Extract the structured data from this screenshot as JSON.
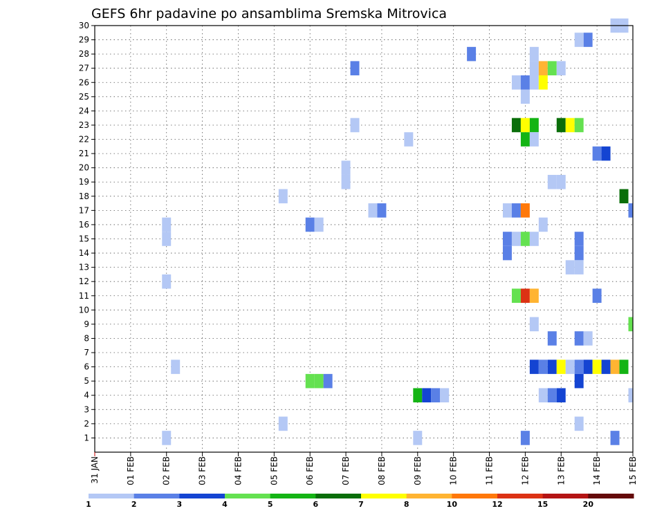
{
  "chart_data": {
    "type": "heatmap",
    "title": "GEFS 6hr padavine po ansamblima Sremska Mitrovica",
    "xlabel": "",
    "ylabel": "",
    "x_tick_labels": [
      "31 JAN",
      "01 FEB",
      "02 FEB",
      "03 FEB",
      "04 FEB",
      "05 FEB",
      "06 FEB",
      "07 FEB",
      "08 FEB",
      "09 FEB",
      "10 FEB",
      "11 FEB",
      "12 FEB",
      "13 FEB",
      "14 FEB",
      "15 FEB"
    ],
    "xlim": [
      0,
      15
    ],
    "ylim": [
      0,
      30
    ],
    "y_ticks": [
      1,
      2,
      3,
      4,
      5,
      6,
      7,
      8,
      9,
      10,
      11,
      12,
      13,
      14,
      15,
      16,
      17,
      18,
      19,
      20,
      21,
      22,
      23,
      24,
      25,
      26,
      27,
      28,
      29,
      30
    ],
    "grid": true,
    "legend": {
      "placement": "bottom",
      "labels": [
        "1",
        "2",
        "3",
        "4",
        "5",
        "6",
        "7",
        "8",
        "10",
        "12",
        "15",
        "20"
      ],
      "colors": [
        "#b4c8f5",
        "#5a80e6",
        "#1444d2",
        "#64e150",
        "#14b414",
        "#0a6e0a",
        "#ffff00",
        "#ffb432",
        "#ff780a",
        "#dc3214",
        "#b41414",
        "#640a0a"
      ]
    },
    "cells": [
      {
        "day": 14.75,
        "member": 30,
        "bin": 0
      },
      {
        "day": 14.5,
        "member": 30,
        "bin": 0
      },
      {
        "day": 13.75,
        "member": 29,
        "bin": 1
      },
      {
        "day": 13.5,
        "member": 29,
        "bin": 0
      },
      {
        "day": 10.5,
        "member": 28,
        "bin": 1
      },
      {
        "day": 12.25,
        "member": 28,
        "bin": 0
      },
      {
        "day": 7.25,
        "member": 27,
        "bin": 1
      },
      {
        "day": 12.25,
        "member": 27,
        "bin": 0
      },
      {
        "day": 12.5,
        "member": 27,
        "bin": 7
      },
      {
        "day": 12.75,
        "member": 27,
        "bin": 3
      },
      {
        "day": 13.0,
        "member": 27,
        "bin": 0
      },
      {
        "day": 11.75,
        "member": 26,
        "bin": 0
      },
      {
        "day": 12.0,
        "member": 26,
        "bin": 1
      },
      {
        "day": 12.25,
        "member": 26,
        "bin": 0
      },
      {
        "day": 12.5,
        "member": 26,
        "bin": 6
      },
      {
        "day": 12.0,
        "member": 25,
        "bin": 0
      },
      {
        "day": 11.75,
        "member": 23,
        "bin": 5
      },
      {
        "day": 12.0,
        "member": 23,
        "bin": 6
      },
      {
        "day": 12.25,
        "member": 23,
        "bin": 4
      },
      {
        "day": 7.25,
        "member": 23,
        "bin": 0
      },
      {
        "day": 13.0,
        "member": 23,
        "bin": 5
      },
      {
        "day": 13.25,
        "member": 23,
        "bin": 6
      },
      {
        "day": 13.5,
        "member": 23,
        "bin": 3
      },
      {
        "day": 8.75,
        "member": 22,
        "bin": 0
      },
      {
        "day": 12.0,
        "member": 22,
        "bin": 4
      },
      {
        "day": 12.25,
        "member": 22,
        "bin": 0
      },
      {
        "day": 14.0,
        "member": 21,
        "bin": 1
      },
      {
        "day": 14.25,
        "member": 21,
        "bin": 2
      },
      {
        "day": 7.0,
        "member": 20,
        "bin": 0
      },
      {
        "day": 7.0,
        "member": 19,
        "bin": 0
      },
      {
        "day": 12.75,
        "member": 19,
        "bin": 0
      },
      {
        "day": 13.0,
        "member": 19,
        "bin": 0
      },
      {
        "day": 5.25,
        "member": 18,
        "bin": 0
      },
      {
        "day": 14.75,
        "member": 18,
        "bin": 5
      },
      {
        "day": 7.75,
        "member": 17,
        "bin": 0
      },
      {
        "day": 8.0,
        "member": 17,
        "bin": 1
      },
      {
        "day": 11.5,
        "member": 17,
        "bin": 0
      },
      {
        "day": 11.75,
        "member": 17,
        "bin": 1
      },
      {
        "day": 12.0,
        "member": 17,
        "bin": 8
      },
      {
        "day": 15.0,
        "member": 17,
        "bin": 1
      },
      {
        "day": 2.0,
        "member": 16,
        "bin": 0
      },
      {
        "day": 6.0,
        "member": 16,
        "bin": 1
      },
      {
        "day": 6.25,
        "member": 16,
        "bin": 0
      },
      {
        "day": 12.5,
        "member": 16,
        "bin": 0
      },
      {
        "day": 2.0,
        "member": 15,
        "bin": 0
      },
      {
        "day": 11.5,
        "member": 15,
        "bin": 1
      },
      {
        "day": 11.75,
        "member": 15,
        "bin": 0
      },
      {
        "day": 12.0,
        "member": 15,
        "bin": 3
      },
      {
        "day": 12.25,
        "member": 15,
        "bin": 0
      },
      {
        "day": 13.5,
        "member": 15,
        "bin": 1
      },
      {
        "day": 11.5,
        "member": 14,
        "bin": 1
      },
      {
        "day": 13.5,
        "member": 14,
        "bin": 1
      },
      {
        "day": 13.25,
        "member": 13,
        "bin": 0
      },
      {
        "day": 13.5,
        "member": 13,
        "bin": 0
      },
      {
        "day": 2.0,
        "member": 12,
        "bin": 0
      },
      {
        "day": 11.75,
        "member": 11,
        "bin": 3
      },
      {
        "day": 12.0,
        "member": 11,
        "bin": 9
      },
      {
        "day": 12.25,
        "member": 11,
        "bin": 7
      },
      {
        "day": 14.0,
        "member": 11,
        "bin": 1
      },
      {
        "day": 12.25,
        "member": 9,
        "bin": 0
      },
      {
        "day": 15.0,
        "member": 9,
        "bin": 3
      },
      {
        "day": 12.75,
        "member": 8,
        "bin": 1
      },
      {
        "day": 13.5,
        "member": 8,
        "bin": 1
      },
      {
        "day": 13.75,
        "member": 8,
        "bin": 0
      },
      {
        "day": 2.25,
        "member": 6,
        "bin": 0
      },
      {
        "day": 12.25,
        "member": 6,
        "bin": 2
      },
      {
        "day": 12.5,
        "member": 6,
        "bin": 1
      },
      {
        "day": 12.75,
        "member": 6,
        "bin": 2
      },
      {
        "day": 13.0,
        "member": 6,
        "bin": 6
      },
      {
        "day": 13.25,
        "member": 6,
        "bin": 0
      },
      {
        "day": 13.5,
        "member": 6,
        "bin": 1
      },
      {
        "day": 13.75,
        "member": 6,
        "bin": 2
      },
      {
        "day": 14.0,
        "member": 6,
        "bin": 6
      },
      {
        "day": 14.25,
        "member": 6,
        "bin": 2
      },
      {
        "day": 14.5,
        "member": 6,
        "bin": 7
      },
      {
        "day": 14.75,
        "member": 6,
        "bin": 4
      },
      {
        "day": 6.0,
        "member": 5,
        "bin": 3
      },
      {
        "day": 6.25,
        "member": 5,
        "bin": 3
      },
      {
        "day": 6.5,
        "member": 5,
        "bin": 1
      },
      {
        "day": 13.5,
        "member": 5,
        "bin": 2
      },
      {
        "day": 9.0,
        "member": 4,
        "bin": 4
      },
      {
        "day": 9.25,
        "member": 4,
        "bin": 2
      },
      {
        "day": 9.5,
        "member": 4,
        "bin": 1
      },
      {
        "day": 9.75,
        "member": 4,
        "bin": 0
      },
      {
        "day": 12.5,
        "member": 4,
        "bin": 0
      },
      {
        "day": 12.75,
        "member": 4,
        "bin": 1
      },
      {
        "day": 13.0,
        "member": 4,
        "bin": 2
      },
      {
        "day": 15.0,
        "member": 4,
        "bin": 0
      },
      {
        "day": 5.25,
        "member": 2,
        "bin": 0
      },
      {
        "day": 13.5,
        "member": 2,
        "bin": 0
      },
      {
        "day": 2.0,
        "member": 1,
        "bin": 0
      },
      {
        "day": 9.0,
        "member": 1,
        "bin": 0
      },
      {
        "day": 12.0,
        "member": 1,
        "bin": 1
      },
      {
        "day": 14.5,
        "member": 1,
        "bin": 1
      }
    ]
  }
}
